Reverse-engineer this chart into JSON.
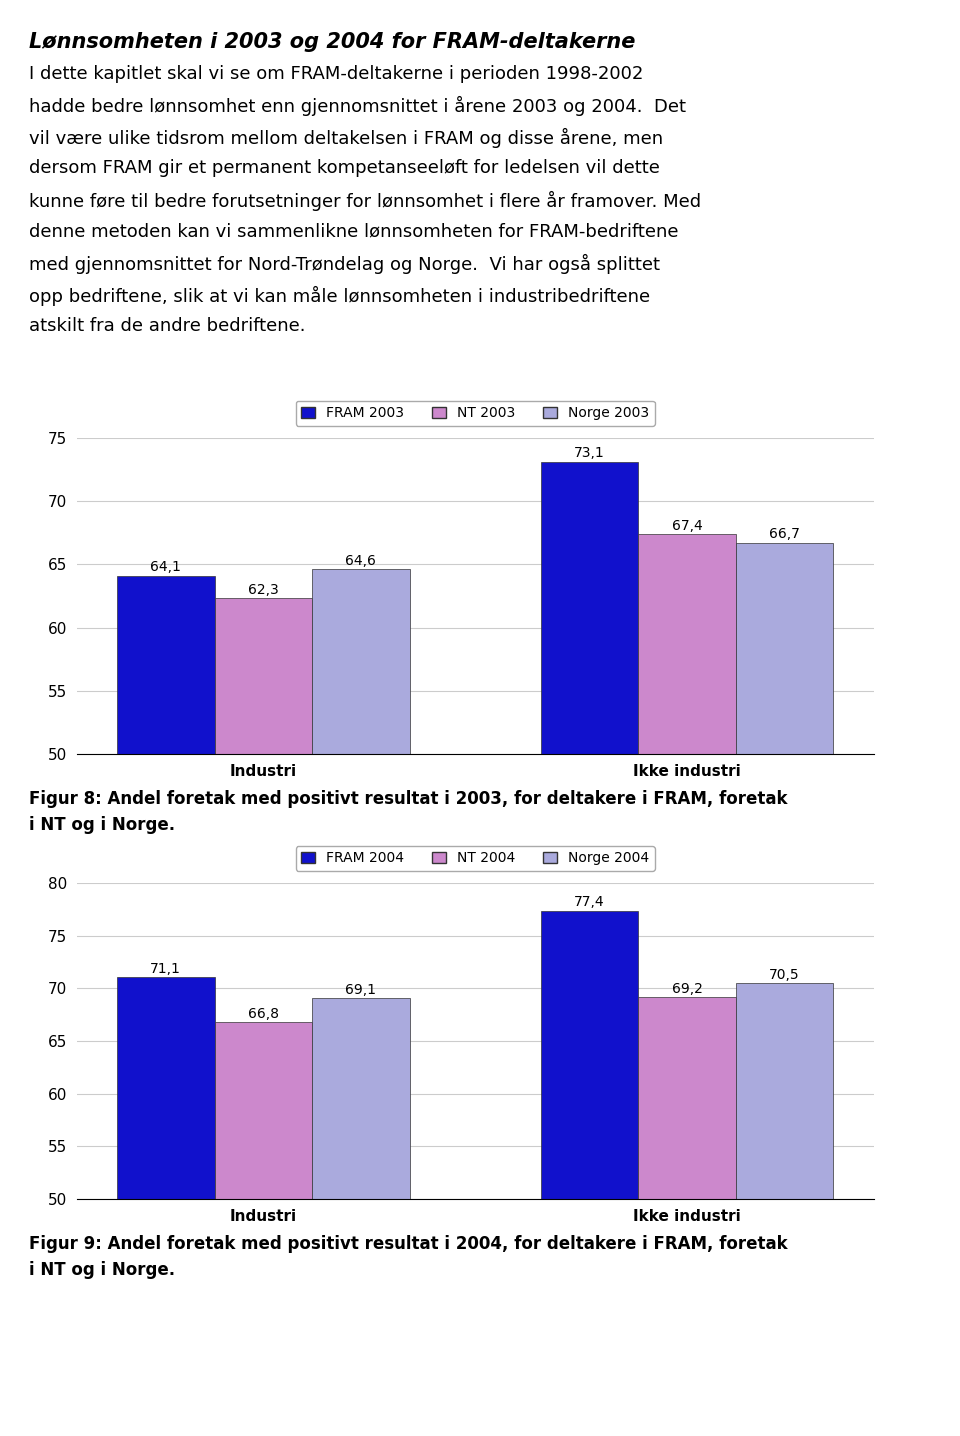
{
  "title": "Lønnsomheten i 2003 og 2004 for FRAM-deltakerne",
  "body_lines": [
    "I dette kapitlet skal vi se om FRAM-deltakerne i perioden 1998-2002",
    "hadde bedre lønnsomhet enn gjennomsnittet i årene 2003 og 2004.  Det",
    "vil være ulike tidsrom mellom deltakelsen i FRAM og disse årene, men",
    "dersom FRAM gir et permanent kompetanseeløft for ledelsen vil dette",
    "kunne føre til bedre forutsetninger for lønnsomhet i flere år framover. Med",
    "denne metoden kan vi sammenlikne lønnsomheten for FRAM-bedriftene",
    "med gjennomsnittet for Nord-Trøndelag og Norge.  Vi har også splittet",
    "opp bedriftene, slik at vi kan måle lønnsomheten i industribedriftene",
    "atskilt fra de andre bedriftene."
  ],
  "chart1": {
    "legend_labels": [
      "FRAM 2003",
      "NT 2003",
      "Norge 2003"
    ],
    "categories": [
      "Industri",
      "Ikke industri"
    ],
    "fram_values": [
      64.1,
      73.1
    ],
    "nt_values": [
      62.3,
      67.4
    ],
    "norge_values": [
      64.6,
      66.7
    ],
    "ylim": [
      50,
      75
    ],
    "yticks": [
      50,
      55,
      60,
      65,
      70,
      75
    ],
    "caption_line1": "Figur 8: Andel foretak med positivt resultat i 2003, for deltakere i FRAM, foretak",
    "caption_line2": "i NT og i Norge."
  },
  "chart2": {
    "legend_labels": [
      "FRAM 2004",
      "NT 2004",
      "Norge 2004"
    ],
    "categories": [
      "Industri",
      "Ikke industri"
    ],
    "fram_values": [
      71.1,
      77.4
    ],
    "nt_values": [
      66.8,
      69.2
    ],
    "norge_values": [
      69.1,
      70.5
    ],
    "ylim": [
      50,
      80
    ],
    "yticks": [
      50,
      55,
      60,
      65,
      70,
      75,
      80
    ],
    "caption_line1": "Figur 9: Andel foretak med positivt resultat i 2004, for deltakere i FRAM, foretak",
    "caption_line2": "i NT og i Norge."
  },
  "fram_color": "#1111CC",
  "nt_color": "#CC88CC",
  "norge_color": "#AAAADD",
  "bar_edgecolor": "#333333",
  "box_edgecolor": "#2222AA",
  "text_color": "#000000",
  "title_fontsize": 15,
  "body_fontsize": 13,
  "axis_fontsize": 11,
  "tick_fontsize": 11,
  "val_label_fontsize": 10,
  "caption_fontsize": 12,
  "legend_fontsize": 10
}
